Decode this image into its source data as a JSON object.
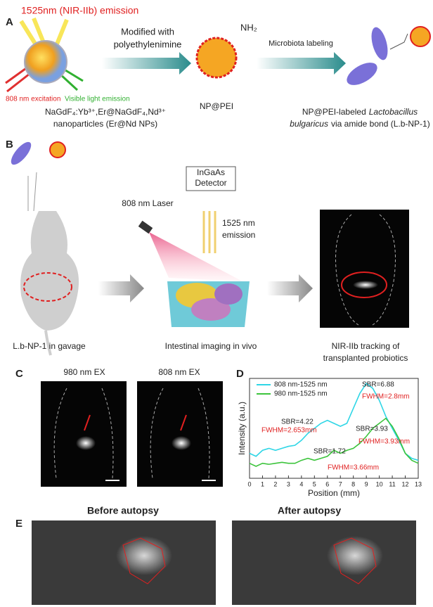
{
  "panel_a": {
    "label": "A",
    "emission": "1525nm (NIR-IIb) emission",
    "excitation": "808 nm excitation",
    "visible": "Visible light emission",
    "step1_line1": "Modified with",
    "step1_line2": "polyethylenimine",
    "nh2": "NH₂",
    "step2": "Microbiota labeling",
    "np_line1": "NaGdF₄:Yb³⁺,Er@NaGdF₄,Nd³⁺",
    "np_line2": "nanoparticles (Er@Nd NPs)",
    "np_pei": "NP@PEI",
    "lb_line1a": "NP@PEI-labeled",
    "lb_line1b": "Lactobacillus",
    "lb_line2a": "bulgaricus",
    "lb_line2b": "via amide bond (L.b-NP-1)"
  },
  "panel_b": {
    "label": "B",
    "detector_line1": "InGaAs",
    "detector_line2": "Detector",
    "laser": "808 nm Laser",
    "emission_line1": "1525 nm",
    "emission_line2": "emission",
    "caption1": "L.b-NP-1 in gavage",
    "caption2": "Intestinal imaging in vivo",
    "caption3_line1": "NIR-IIb tracking of",
    "caption3_line2": "transplanted probiotics"
  },
  "panel_c": {
    "label": "C",
    "left": "980 nm EX",
    "right": "808 nm EX"
  },
  "panel_d": {
    "label": "D",
    "chart_data": {
      "type": "line",
      "x_label": "Position (mm)",
      "y_label": "Intensity (a.u.)",
      "x": [
        0,
        0.5,
        1,
        1.5,
        2,
        2.5,
        3,
        3.5,
        4,
        4.5,
        5,
        5.5,
        6,
        6.5,
        7,
        7.5,
        8,
        8.5,
        9,
        9.5,
        10,
        10.5,
        11,
        11.5,
        12,
        12.5,
        13
      ],
      "xlim": [
        0,
        13
      ],
      "xticks": [
        0,
        1,
        2,
        3,
        4,
        5,
        6,
        7,
        8,
        9,
        10,
        11,
        12,
        13
      ],
      "ylim": [
        0,
        1
      ],
      "series": [
        {
          "name": "808 nm-1525 nm",
          "color": "#2fd6e6",
          "values": [
            0.25,
            0.22,
            0.28,
            0.3,
            0.28,
            0.3,
            0.32,
            0.33,
            0.38,
            0.45,
            0.5,
            0.55,
            0.58,
            0.55,
            0.52,
            0.55,
            0.7,
            0.85,
            0.95,
            0.9,
            0.78,
            0.62,
            0.5,
            0.38,
            0.25,
            0.2,
            0.18
          ]
        },
        {
          "name": "980 nm-1525 nm",
          "color": "#3cc43c",
          "values": [
            0.15,
            0.12,
            0.15,
            0.14,
            0.15,
            0.16,
            0.15,
            0.15,
            0.18,
            0.2,
            0.18,
            0.2,
            0.22,
            0.28,
            0.25,
            0.28,
            0.3,
            0.35,
            0.42,
            0.5,
            0.55,
            0.6,
            0.52,
            0.4,
            0.25,
            0.18,
            0.15
          ]
        }
      ],
      "annotations": [
        {
          "text": "SBR=6.88",
          "color": "#222222"
        },
        {
          "text": "FWHM=2.8mm",
          "color": "#e02020"
        },
        {
          "text": "SBR=4.22",
          "color": "#222222"
        },
        {
          "text": "FWHM=2.653mm",
          "color": "#e02020"
        },
        {
          "text": "SBR=3.93",
          "color": "#222222"
        },
        {
          "text": "FWHM=3.93mm",
          "color": "#e02020"
        },
        {
          "text": "SBR=1.72",
          "color": "#222222"
        },
        {
          "text": "FWHM=3.66mm",
          "color": "#e02020"
        }
      ]
    }
  },
  "panel_e": {
    "label": "E",
    "left": "Before autopsy",
    "right": "After autopsy"
  }
}
